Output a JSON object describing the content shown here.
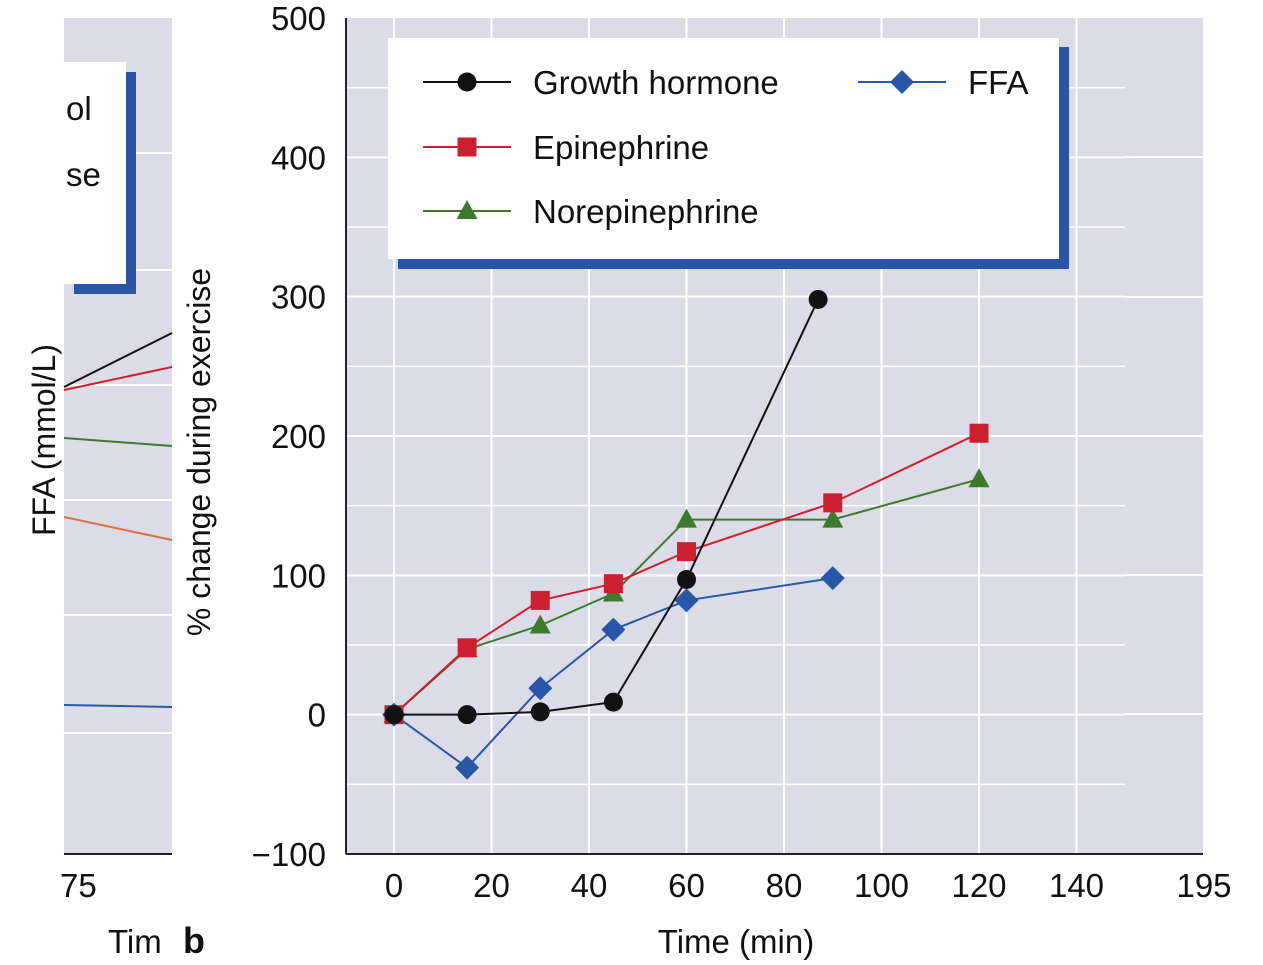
{
  "left_fragment": {
    "legend_lines": [
      "ol",
      "se"
    ],
    "ylabel": "FFA (mmol/L)",
    "tick_label": "75",
    "xlabel": "Tim"
  },
  "panel_label": "b",
  "right_fragment": {
    "tick_label": "195"
  },
  "chart_data": {
    "type": "line",
    "title": "",
    "xlabel": "Time (min)",
    "ylabel": "% change during exercise",
    "xlim": [
      -10,
      150
    ],
    "ylim": [
      -100,
      500
    ],
    "xticks": [
      0,
      20,
      40,
      60,
      80,
      100,
      120,
      140
    ],
    "yticks": [
      -100,
      0,
      100,
      200,
      300,
      400,
      500
    ],
    "ytick_labels": [
      "−100",
      "0",
      "100",
      "200",
      "300",
      "400",
      "500"
    ],
    "grid": true,
    "legend_position": "top",
    "series": [
      {
        "name": "Growth hormone",
        "color": "#111111",
        "marker": "circle",
        "x": [
          0,
          15,
          30,
          45,
          60,
          87
        ],
        "y": [
          0,
          0,
          2,
          9,
          97,
          298
        ]
      },
      {
        "name": "Epinephrine",
        "color": "#cc1f2f",
        "marker": "square",
        "x": [
          0,
          15,
          30,
          45,
          60,
          90,
          120
        ],
        "y": [
          0,
          48,
          82,
          94,
          117,
          152,
          202
        ]
      },
      {
        "name": "Norepinephrine",
        "color": "#3e7a2e",
        "marker": "triangle",
        "x": [
          0,
          15,
          30,
          45,
          60,
          90,
          120
        ],
        "y": [
          0,
          47,
          64,
          87,
          140,
          140,
          169
        ]
      },
      {
        "name": "FFA",
        "color": "#2857a8",
        "marker": "diamond",
        "x": [
          0,
          15,
          30,
          45,
          60,
          90
        ],
        "y": [
          0,
          -38,
          19,
          61,
          82,
          98
        ]
      }
    ]
  },
  "colors": {
    "plot_bg": "#dcdce8",
    "grid": "#ffffff",
    "legend_shadow": "#2a55a6",
    "left_extra_series": "#e07040"
  }
}
